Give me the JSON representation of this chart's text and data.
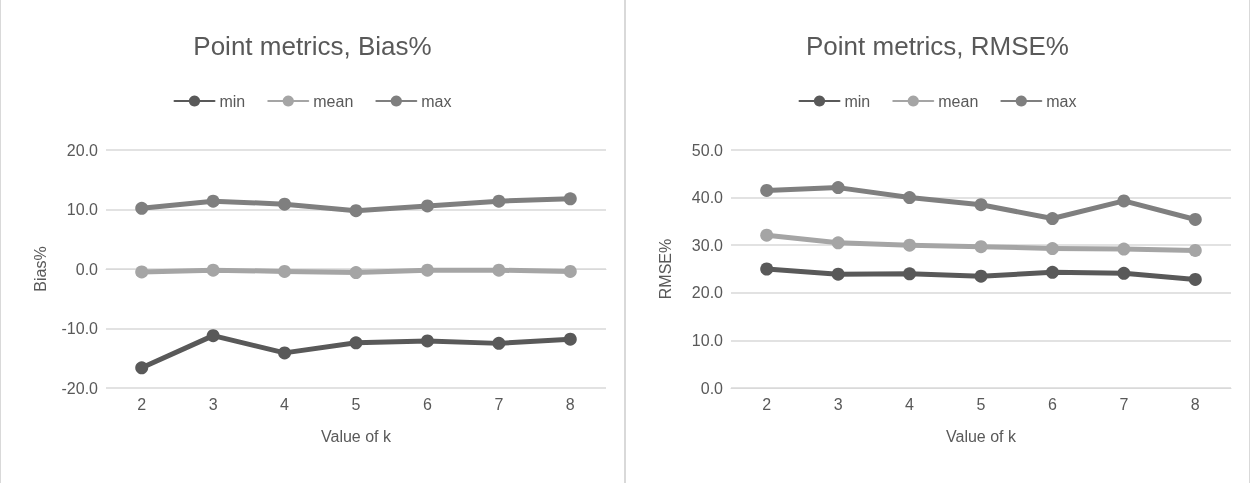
{
  "chart_data": [
    {
      "type": "line",
      "title": "Point metrics, Bias%",
      "xlabel": "Value of k",
      "ylabel": "Bias%",
      "categories": [
        "2",
        "3",
        "4",
        "5",
        "6",
        "7",
        "8"
      ],
      "series": [
        {
          "name": "min",
          "color": "#595959",
          "values": [
            -16.6,
            -11.2,
            -14.1,
            -12.4,
            -12.1,
            -12.5,
            -11.8
          ]
        },
        {
          "name": "mean",
          "color": "#a5a5a5",
          "values": [
            -0.5,
            -0.2,
            -0.4,
            -0.6,
            -0.2,
            -0.2,
            -0.4
          ]
        },
        {
          "name": "max",
          "color": "#7f7f7f",
          "values": [
            10.2,
            11.4,
            10.9,
            9.8,
            10.6,
            11.4,
            11.8
          ]
        }
      ],
      "ylim": [
        -20,
        20
      ],
      "yticks": [
        {
          "value": -20,
          "label": "-20.0"
        },
        {
          "value": -10,
          "label": "-10.0"
        },
        {
          "value": 0,
          "label": "0.0"
        },
        {
          "value": 10,
          "label": "10.0"
        },
        {
          "value": 20,
          "label": "20.0"
        }
      ],
      "grid": "y",
      "legend": "top",
      "marker": "circle",
      "line_style": "solid"
    },
    {
      "type": "line",
      "title": "Point metrics, RMSE%",
      "xlabel": "Value of k",
      "ylabel": "RMSE%",
      "categories": [
        "2",
        "3",
        "4",
        "5",
        "6",
        "7",
        "8"
      ],
      "series": [
        {
          "name": "min",
          "color": "#595959",
          "values": [
            25.0,
            23.9,
            24.0,
            23.5,
            24.3,
            24.1,
            22.8
          ]
        },
        {
          "name": "mean",
          "color": "#a5a5a5",
          "values": [
            32.1,
            30.5,
            30.0,
            29.7,
            29.3,
            29.2,
            28.9
          ]
        },
        {
          "name": "max",
          "color": "#7f7f7f",
          "values": [
            41.5,
            42.1,
            40.0,
            38.5,
            35.6,
            39.3,
            35.4
          ]
        }
      ],
      "ylim": [
        0,
        50
      ],
      "yticks": [
        {
          "value": 0,
          "label": "0.0"
        },
        {
          "value": 10,
          "label": "10.0"
        },
        {
          "value": 20,
          "label": "20.0"
        },
        {
          "value": 30,
          "label": "30.0"
        },
        {
          "value": 40,
          "label": "40.0"
        },
        {
          "value": 50,
          "label": "50.0"
        }
      ],
      "grid": "y",
      "legend": "top",
      "marker": "circle",
      "line_style": "solid"
    }
  ]
}
